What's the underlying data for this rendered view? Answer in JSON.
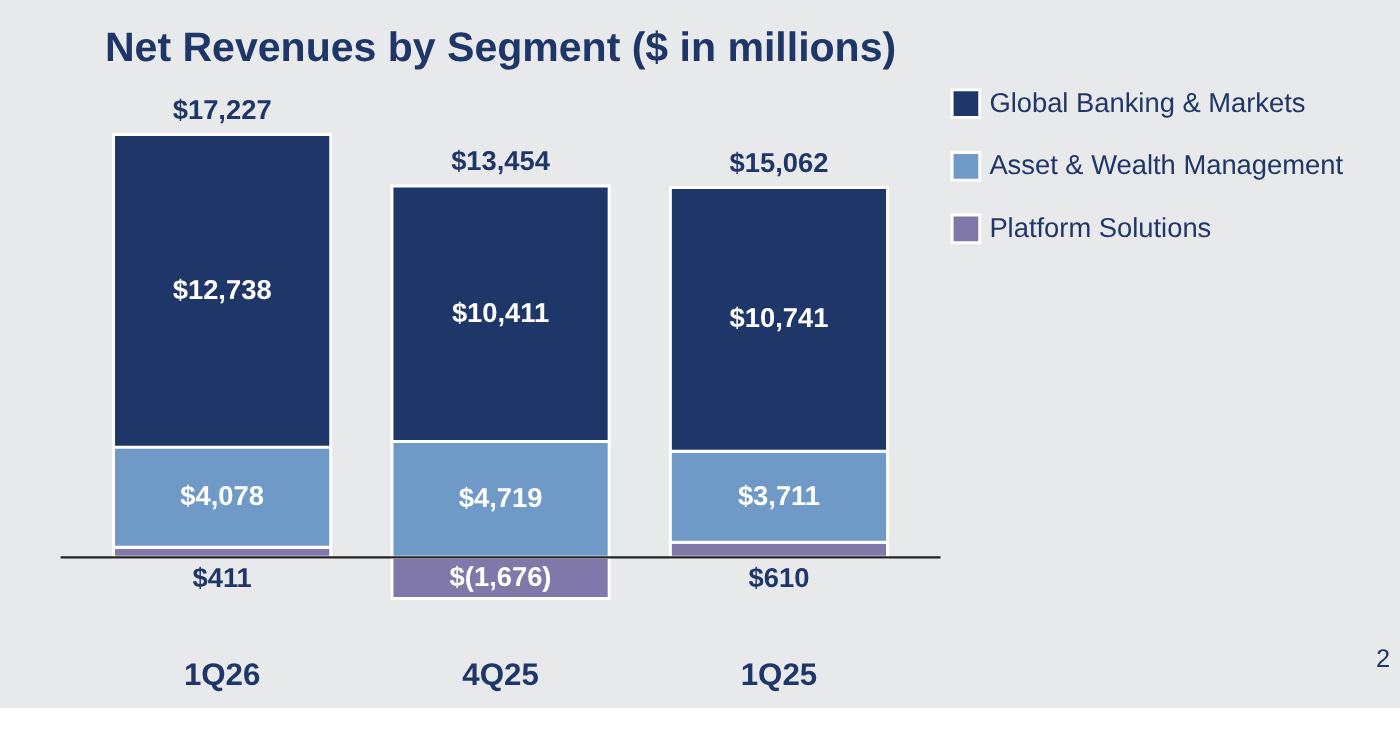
{
  "chart_data": {
    "type": "bar",
    "title": "Net Revenues by Segment ($ in millions)",
    "categories": [
      "1Q26",
      "4Q25",
      "1Q25"
    ],
    "stacked": true,
    "series": [
      {
        "name": "Platform Solutions",
        "color": "#7f78a8",
        "values": [
          411,
          -1676,
          610
        ],
        "value_labels": [
          "$411",
          "$(1,676)",
          "$610"
        ]
      },
      {
        "name": "Asset & Wealth Management",
        "color": "#6f9ac8",
        "values": [
          4078,
          4719,
          3711
        ],
        "value_labels": [
          "$4,078",
          "$4,719",
          "$3,711"
        ]
      },
      {
        "name": "Global Banking & Markets",
        "color": "#1f3668",
        "values": [
          12738,
          10411,
          10741
        ],
        "value_labels": [
          "$12,738",
          "$10,411",
          "$10,741"
        ]
      }
    ],
    "totals": [
      "$17,227",
      "$13,454",
      "$15,062"
    ],
    "legend": "right",
    "annotations": [
      "2"
    ]
  }
}
